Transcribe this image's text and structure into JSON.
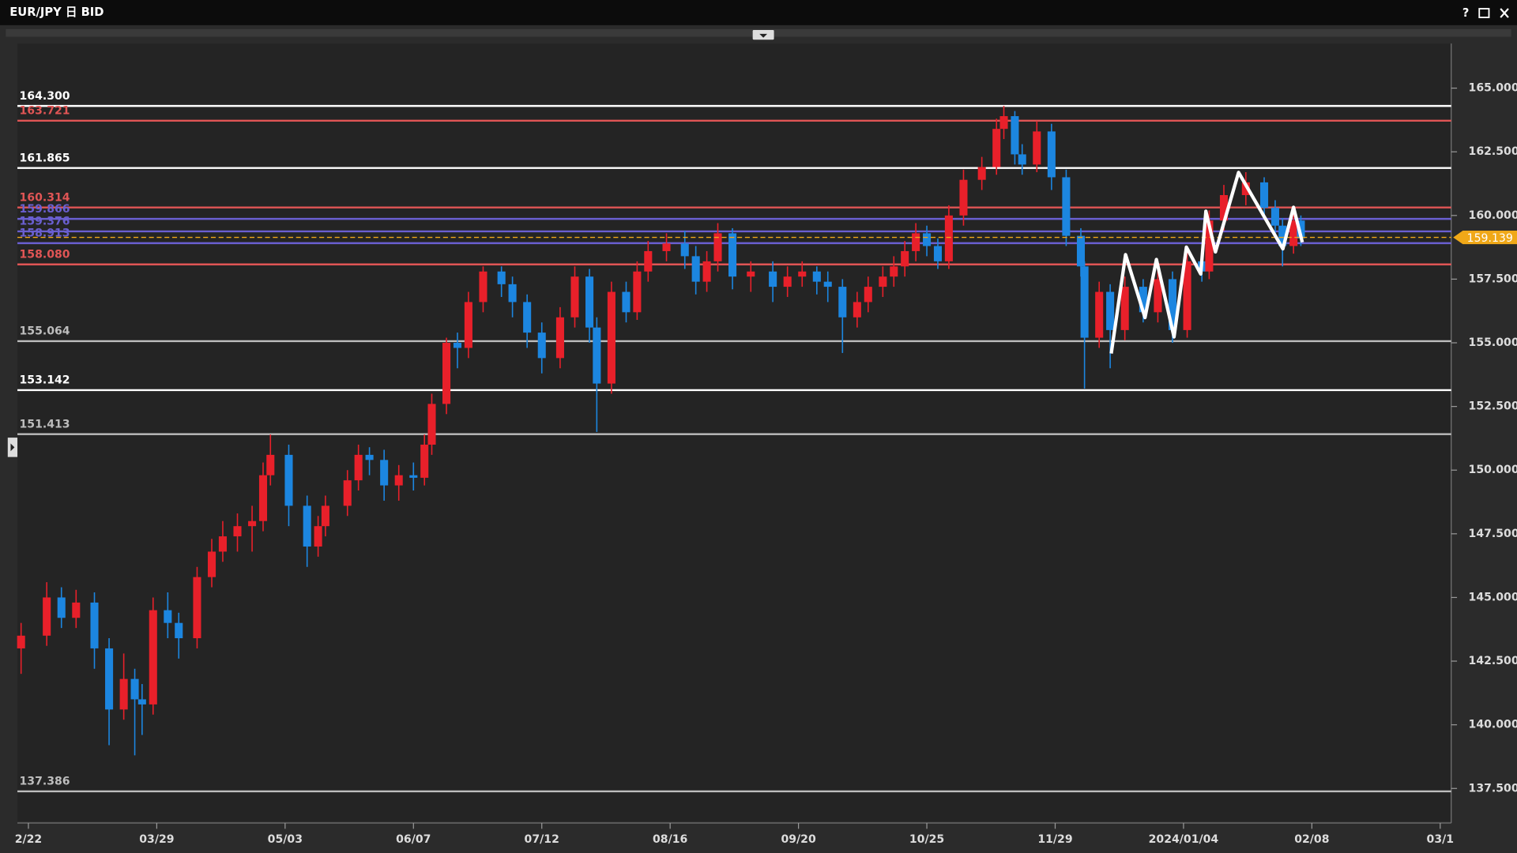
{
  "window_controls": {
    "help": "?"
  },
  "chart_data": {
    "type": "candlestick",
    "title": "EUR/JPY 日 BID",
    "up_color": "#e8202a",
    "down_color": "#1c86e0",
    "xlim": [
      -3,
      388
    ],
    "ylim": [
      136.22,
      166.75
    ],
    "xticks": [
      {
        "value": 0,
        "label": "2/22"
      },
      {
        "value": 35,
        "label": "03/29"
      },
      {
        "value": 70,
        "label": "05/03"
      },
      {
        "value": 105,
        "label": "06/07"
      },
      {
        "value": 140,
        "label": "07/12"
      },
      {
        "value": 175,
        "label": "08/16"
      },
      {
        "value": 210,
        "label": "09/20"
      },
      {
        "value": 245,
        "label": "10/25"
      },
      {
        "value": 280,
        "label": "11/29"
      },
      {
        "value": 315,
        "label": "2024/01/04"
      },
      {
        "value": 350,
        "label": "02/08"
      },
      {
        "value": 385,
        "label": "03/1"
      }
    ],
    "yticks": [
      {
        "value": 137.5,
        "label": "137.500"
      },
      {
        "value": 140,
        "label": "140.000"
      },
      {
        "value": 142.5,
        "label": "142.500"
      },
      {
        "value": 145,
        "label": "145.000"
      },
      {
        "value": 147.5,
        "label": "147.500"
      },
      {
        "value": 150,
        "label": "150.000"
      },
      {
        "value": 152.5,
        "label": "152.500"
      },
      {
        "value": 155,
        "label": "155.000"
      },
      {
        "value": 157.5,
        "label": "157.500"
      },
      {
        "value": 160,
        "label": "160.000"
      },
      {
        "value": 162.5,
        "label": "162.500"
      },
      {
        "value": 165,
        "label": "165.000"
      }
    ],
    "levels": [
      {
        "value": 164.3,
        "label": "164.300",
        "color": "#ffffff"
      },
      {
        "value": 163.721,
        "label": "163.721",
        "color": "#e05555"
      },
      {
        "value": 161.865,
        "label": "161.865",
        "color": "#ffffff"
      },
      {
        "value": 160.314,
        "label": "160.314",
        "color": "#e05555"
      },
      {
        "value": 159.866,
        "label": "159.866",
        "color": "#6a5fd0"
      },
      {
        "value": 159.376,
        "label": "159.376",
        "color": "#6a5fd0"
      },
      {
        "value": 158.913,
        "label": "158.913",
        "color": "#6a5fd0"
      },
      {
        "value": 158.08,
        "label": "158.080",
        "color": "#e05555"
      },
      {
        "value": 155.064,
        "label": "155.064",
        "color": "#bdbdbd"
      },
      {
        "value": 153.142,
        "label": "153.142",
        "color": "#ffffff"
      },
      {
        "value": 151.413,
        "label": "151.413",
        "color": "#bdbdbd"
      },
      {
        "value": 137.386,
        "label": "137.386",
        "color": "#bdbdbd"
      }
    ],
    "current_price": {
      "value": 159.139,
      "label": "159.139",
      "color": "#f0a818"
    },
    "drawing": {
      "color": "#ffffff",
      "x": [
        295.3,
        299.2,
        304.5,
        307.6,
        312.4,
        315.8,
        319.7,
        321.1,
        323.7,
        330,
        342.1,
        345,
        347.4
      ],
      "y": [
        154.58,
        158.46,
        155.99,
        158.27,
        155.23,
        158.76,
        157.7,
        160.17,
        158.57,
        161.69,
        158.69,
        160.32,
        158.95
      ]
    },
    "x": [
      -2,
      5,
      9,
      13,
      18,
      22,
      26,
      29,
      31,
      34,
      38,
      41,
      46,
      50,
      53,
      57,
      61,
      64,
      66,
      71,
      76,
      79,
      81,
      87,
      90,
      93,
      97,
      101,
      105,
      108,
      110,
      114,
      117,
      120,
      124,
      129,
      132,
      136,
      140,
      145,
      149,
      153,
      155,
      159,
      163,
      166,
      169,
      174,
      179,
      182,
      185,
      188,
      192,
      197,
      203,
      207,
      211,
      215,
      218,
      222,
      226,
      229,
      233,
      236,
      239,
      242,
      245,
      248,
      251,
      255,
      260,
      264,
      266,
      269,
      271,
      275,
      279,
      283,
      287,
      288,
      292,
      295,
      299,
      304,
      308,
      312,
      316,
      320,
      322,
      326,
      332,
      337,
      340,
      342,
      345,
      347
    ],
    "open": [
      143.0,
      143.5,
      145.0,
      144.2,
      144.8,
      143.0,
      140.6,
      141.8,
      141.0,
      140.8,
      144.5,
      144.0,
      143.4,
      145.8,
      146.8,
      147.4,
      147.8,
      148.0,
      149.8,
      150.6,
      148.6,
      147.0,
      147.8,
      148.6,
      149.6,
      150.6,
      150.4,
      149.4,
      149.8,
      149.7,
      151.0,
      152.6,
      155.0,
      154.8,
      156.6,
      157.8,
      157.3,
      156.6,
      155.4,
      154.4,
      156.0,
      157.6,
      155.6,
      153.4,
      157.0,
      156.2,
      157.8,
      158.6,
      158.9,
      158.4,
      157.4,
      158.2,
      159.3,
      157.6,
      157.8,
      157.2,
      157.6,
      157.8,
      157.4,
      157.2,
      156.0,
      156.6,
      157.2,
      157.6,
      158.0,
      158.6,
      159.3,
      158.8,
      158.2,
      160.0,
      161.4,
      161.9,
      163.4,
      163.9,
      162.4,
      162.0,
      163.3,
      161.5,
      159.2,
      158.0,
      155.2,
      157.0,
      155.5,
      157.2,
      156.2,
      157.5,
      155.5,
      158.2,
      157.8,
      159.8,
      160.8,
      161.3,
      160.3,
      159.6,
      158.8,
      159.8
    ],
    "high": [
      144.0,
      145.6,
      145.4,
      145.3,
      145.2,
      143.4,
      142.8,
      142.2,
      141.6,
      145.0,
      145.2,
      144.4,
      146.2,
      147.3,
      148.0,
      148.3,
      148.6,
      150.3,
      151.4,
      151.0,
      149.0,
      148.2,
      149.0,
      150.0,
      151.0,
      150.9,
      150.8,
      150.2,
      150.3,
      151.4,
      153.0,
      155.2,
      155.4,
      157.0,
      158.0,
      158.0,
      157.6,
      156.9,
      155.8,
      156.4,
      158.0,
      157.9,
      156.0,
      157.4,
      157.4,
      158.2,
      159.0,
      159.3,
      159.4,
      158.8,
      158.6,
      159.7,
      159.5,
      158.2,
      158.2,
      158.0,
      158.2,
      158.0,
      157.8,
      157.5,
      157.0,
      157.6,
      158.0,
      158.4,
      159.0,
      159.7,
      159.6,
      159.1,
      160.4,
      161.8,
      162.3,
      163.8,
      164.3,
      164.1,
      162.8,
      163.7,
      163.6,
      161.8,
      159.5,
      158.2,
      157.4,
      157.3,
      157.6,
      157.5,
      157.9,
      157.8,
      158.6,
      158.5,
      160.2,
      161.2,
      161.7,
      161.5,
      160.6,
      159.9,
      160.2,
      160.0
    ],
    "low": [
      142.0,
      143.1,
      143.8,
      143.8,
      142.2,
      139.2,
      140.2,
      138.8,
      139.6,
      140.4,
      143.4,
      142.6,
      143.0,
      145.4,
      146.4,
      146.8,
      146.8,
      147.6,
      149.4,
      147.8,
      146.2,
      146.6,
      147.4,
      148.2,
      149.2,
      149.8,
      148.8,
      148.8,
      149.2,
      149.4,
      150.6,
      152.2,
      154.0,
      154.4,
      156.2,
      156.8,
      156.0,
      154.8,
      153.8,
      154.0,
      155.6,
      155.0,
      151.5,
      153.0,
      155.8,
      155.9,
      157.4,
      158.2,
      157.9,
      156.9,
      157.0,
      157.8,
      157.1,
      157.0,
      156.6,
      156.8,
      157.2,
      156.9,
      156.6,
      154.6,
      155.6,
      156.2,
      156.8,
      157.2,
      157.6,
      158.2,
      158.4,
      157.9,
      157.9,
      159.6,
      161.0,
      161.6,
      163.0,
      162.0,
      161.6,
      161.7,
      161.0,
      158.8,
      157.6,
      153.2,
      154.8,
      154.0,
      155.1,
      155.8,
      155.8,
      155.0,
      155.2,
      157.4,
      157.5,
      159.4,
      160.4,
      159.9,
      159.2,
      158.0,
      158.5,
      158.8
    ],
    "close": [
      143.5,
      145.0,
      144.2,
      144.8,
      143.0,
      140.6,
      141.8,
      141.0,
      140.8,
      144.5,
      144.0,
      143.4,
      145.8,
      146.8,
      147.4,
      147.8,
      148.0,
      149.8,
      150.6,
      148.6,
      147.0,
      147.8,
      148.6,
      149.6,
      150.6,
      150.4,
      149.4,
      149.8,
      149.7,
      151.0,
      152.6,
      155.0,
      154.8,
      156.6,
      157.8,
      157.3,
      156.6,
      155.4,
      154.4,
      156.0,
      157.6,
      155.6,
      153.4,
      157.0,
      156.2,
      157.8,
      158.6,
      158.9,
      158.4,
      157.4,
      158.2,
      159.3,
      157.6,
      157.8,
      157.2,
      157.6,
      157.8,
      157.4,
      157.2,
      156.0,
      156.6,
      157.2,
      157.6,
      158.0,
      158.6,
      159.3,
      158.8,
      158.2,
      160.0,
      161.4,
      161.9,
      163.4,
      163.9,
      162.4,
      162.0,
      163.3,
      161.5,
      159.2,
      158.0,
      155.2,
      157.0,
      155.5,
      157.2,
      156.2,
      157.5,
      155.5,
      158.2,
      157.8,
      159.8,
      160.8,
      161.3,
      160.3,
      159.6,
      158.8,
      159.8,
      159.1
    ]
  }
}
